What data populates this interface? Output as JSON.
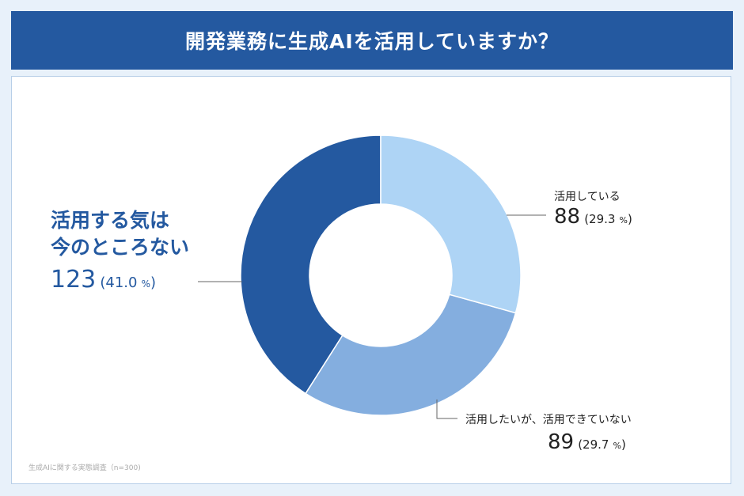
{
  "title": "開発業務に生成AIを活用していますか？",
  "source": "生成AIに関する実態調査（n=300)",
  "chart_data": {
    "type": "pie",
    "donut": true,
    "title": "開発業務に生成AIを活用していますか？",
    "slices": [
      {
        "label": "活用している",
        "value": 88,
        "percent_text": "29.3",
        "color": "#aed4f5"
      },
      {
        "label": "活用したいが、活用できていない",
        "value": 89,
        "percent_text": "29.7",
        "color": "#84aedf"
      },
      {
        "label_line1": "活用する気は",
        "label_line2": "今のところない",
        "value": 123,
        "percent_text": "41.0",
        "color": "#2459a0"
      }
    ],
    "percent_unit": "%"
  }
}
